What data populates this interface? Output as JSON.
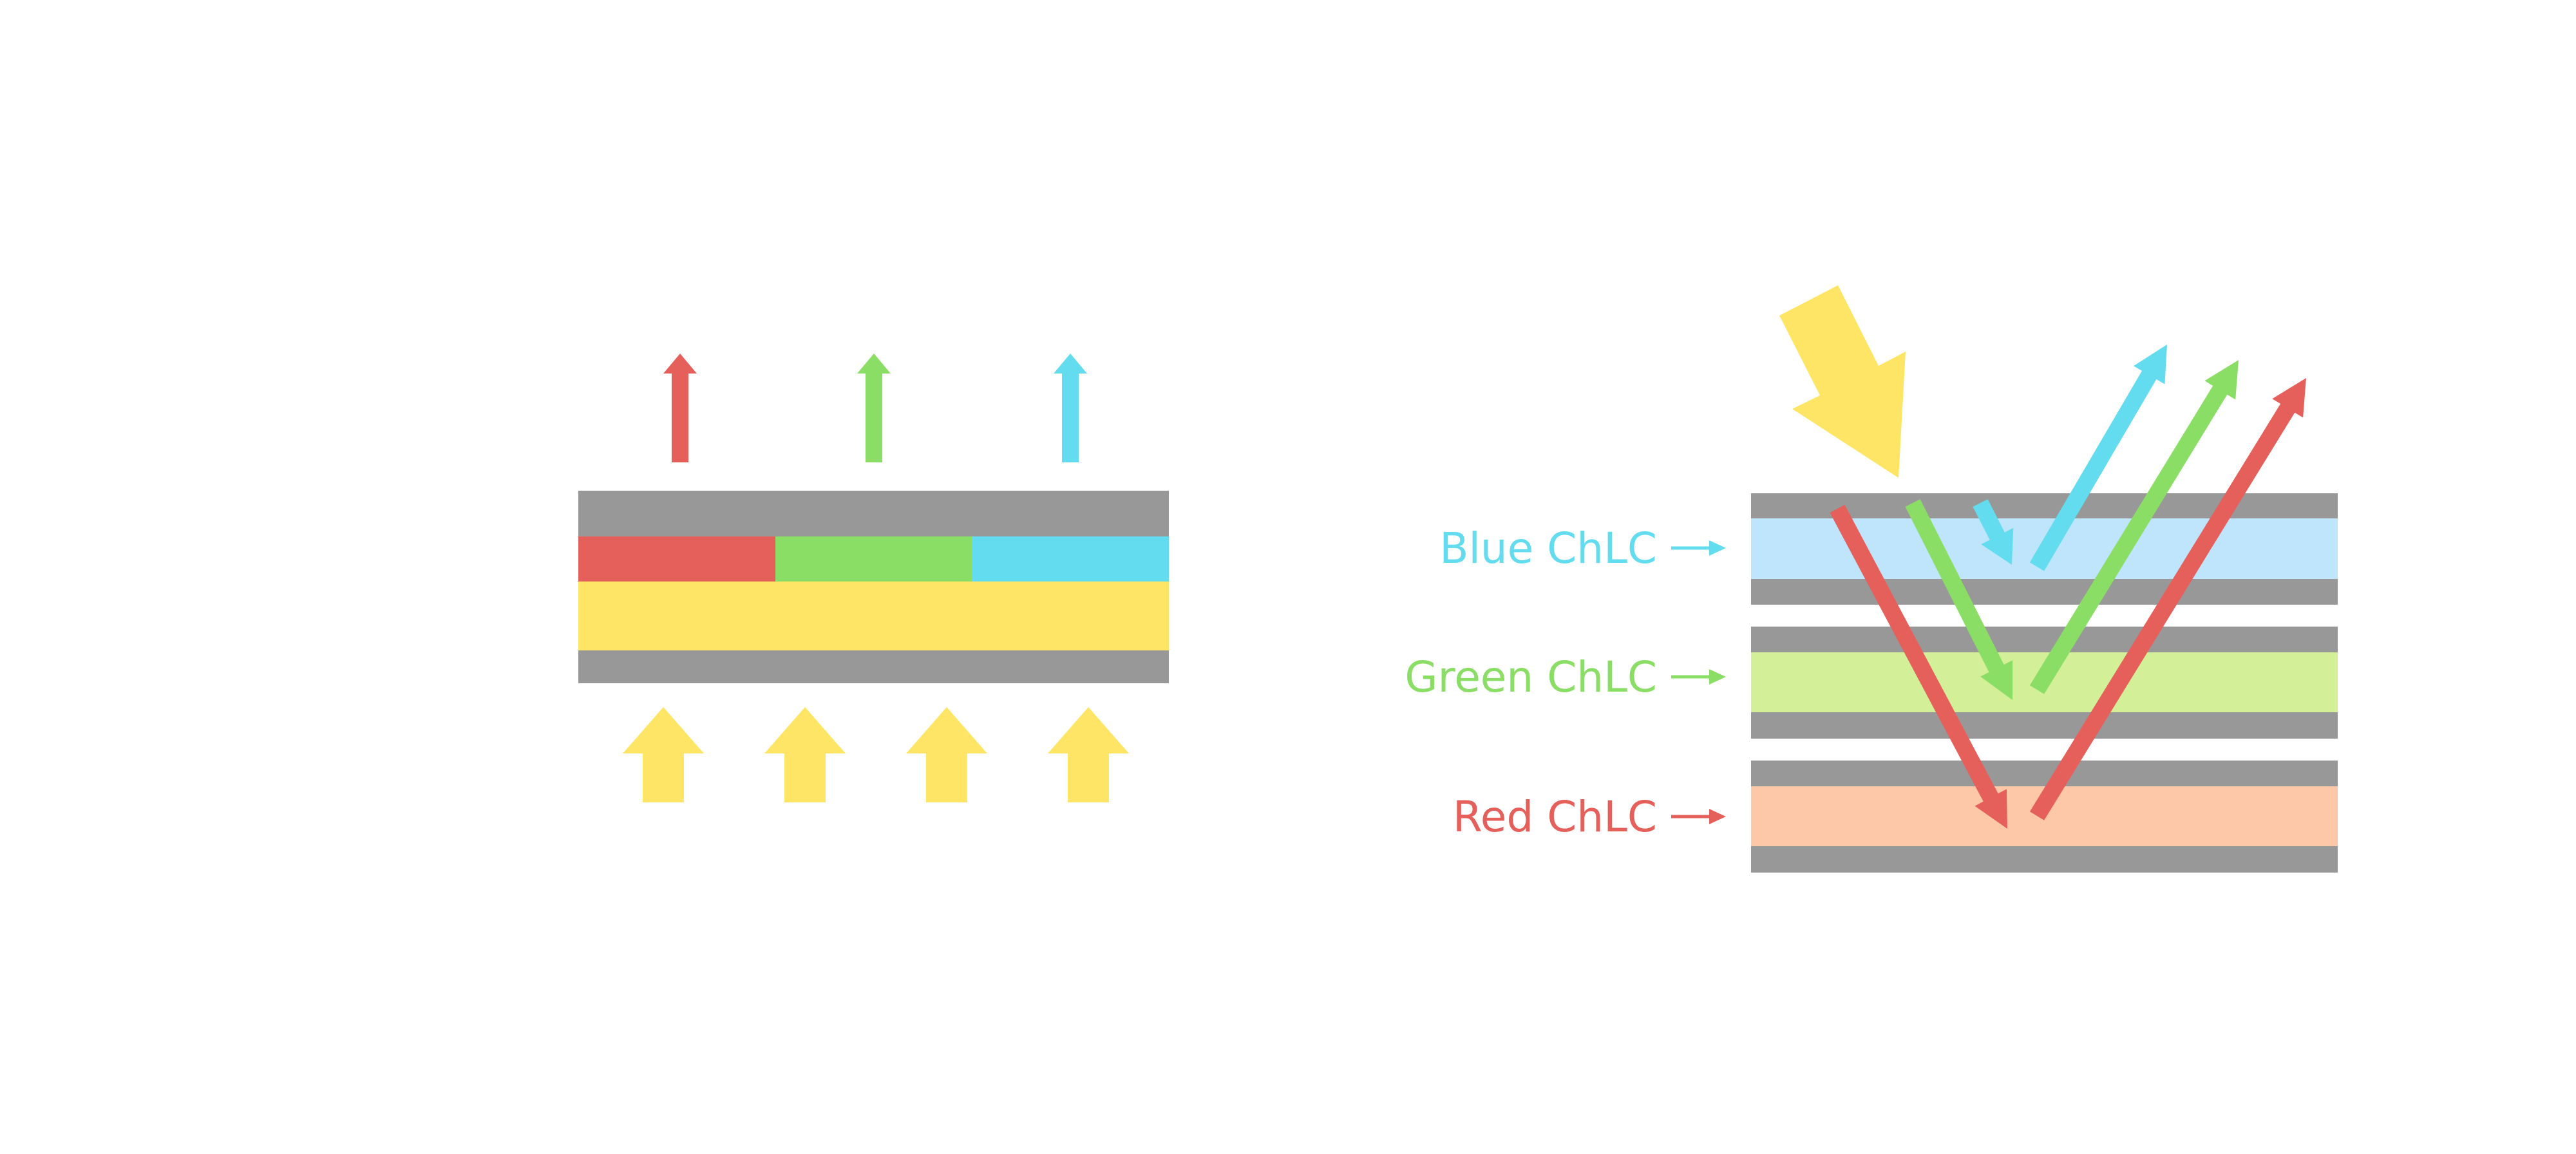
{
  "colors": {
    "gray": "#989898",
    "red": "#e6605b",
    "green": "#8add65",
    "blue": "#62dcee",
    "yellow": "#fee566",
    "light_blue": "#bee5fb",
    "light_green": "#d3ef97",
    "peach": "#fdc8a8"
  },
  "labels": {
    "blue": "Blue ChLC",
    "green": "Green ChLC",
    "red": "Red ChLC"
  }
}
